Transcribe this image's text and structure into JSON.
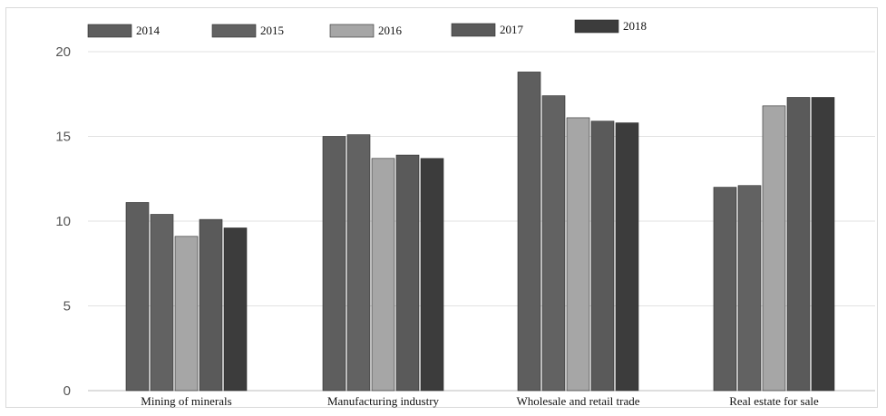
{
  "chart_data": {
    "type": "bar",
    "title": "",
    "xlabel": "",
    "ylabel": "",
    "ylim": [
      0,
      20
    ],
    "yticks": [
      0,
      5,
      10,
      15,
      20
    ],
    "grid": true,
    "legend_position": "top-left",
    "categories": [
      "Mining of minerals",
      "Manufacturing industry",
      "Wholesale and retail trade",
      "Real estate for sale"
    ],
    "series": [
      {
        "name": "2014",
        "color": "#5e5e5e",
        "values": [
          11.1,
          15.0,
          18.8,
          12.0
        ]
      },
      {
        "name": "2015",
        "color": "#626262",
        "values": [
          10.4,
          15.1,
          17.4,
          12.1
        ]
      },
      {
        "name": "2016",
        "color": "#a6a6a6",
        "values": [
          9.1,
          13.7,
          16.1,
          16.8
        ]
      },
      {
        "name": "2017",
        "color": "#5a5a5a",
        "values": [
          10.1,
          13.9,
          15.9,
          17.3
        ]
      },
      {
        "name": "2018",
        "color": "#3c3c3c",
        "values": [
          9.6,
          13.7,
          15.8,
          17.3
        ]
      }
    ]
  }
}
